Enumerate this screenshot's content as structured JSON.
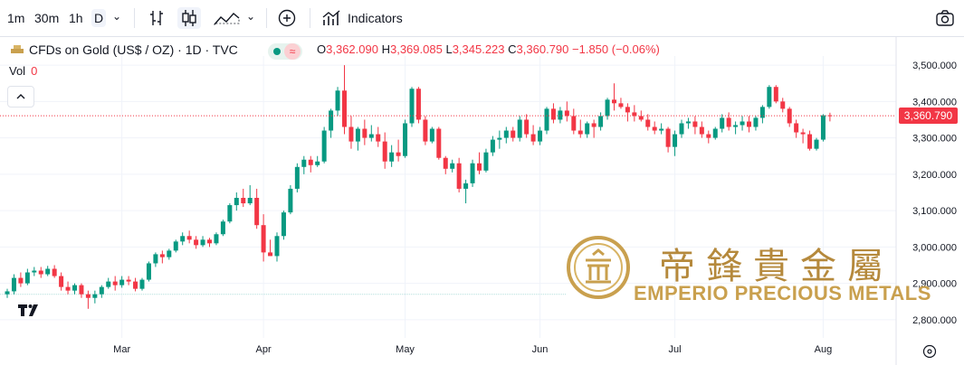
{
  "toolbar": {
    "intervals": [
      "1m",
      "30m",
      "1h",
      "D"
    ],
    "indicators_label": "Indicators",
    "icons": [
      "chevron-down-icon",
      "bar-style-icon",
      "candle-style-icon",
      "area-style-icon",
      "chevron-down-icon",
      "add-compare-icon",
      "indicators-icon",
      "camera-icon"
    ]
  },
  "legend": {
    "symbol": "CFDs on Gold (US$ / OZ) · 1D · TVC",
    "o_label": "O",
    "o_value": "3,362.090",
    "h_label": "H",
    "h_value": "3,369.085",
    "l_label": "L",
    "l_value": "3,345.223",
    "c_label": "C",
    "c_value": "3,360.790",
    "change": "−1.850 (−0.06%)",
    "vol_label": "Vol",
    "vol_value": "0"
  },
  "colors": {
    "up": "#089981",
    "down": "#f23645",
    "grid": "#f0f3fa",
    "gold": "#c9a04e"
  },
  "watermark": {
    "text": "EMPERIO PRECIOUS METALS",
    "chinese": "帝鋒貴金屬"
  },
  "chart_data": {
    "type": "candlestick",
    "ylim": [
      2750,
      3525
    ],
    "y_ticks": [
      "3,500.000",
      "3,400.000",
      "3,300.000",
      "3,200.000",
      "3,100.000",
      "3,000.000",
      "2,900.000",
      "2,800.000"
    ],
    "y_tick_values": [
      3500,
      3400,
      3300,
      3200,
      3100,
      3000,
      2900,
      2800
    ],
    "x_ticks": [
      {
        "label": "Mar",
        "index": 17
      },
      {
        "label": "Apr",
        "index": 38
      },
      {
        "label": "May",
        "index": 59
      },
      {
        "label": "Jun",
        "index": 79
      },
      {
        "label": "Jul",
        "index": 99
      },
      {
        "label": "Aug",
        "index": 121
      }
    ],
    "last_price": "3,360.790",
    "last_value": 3360.79,
    "candles": [
      [
        2870,
        2885,
        2860,
        2878
      ],
      [
        2878,
        2925,
        2870,
        2915
      ],
      [
        2915,
        2930,
        2890,
        2900
      ],
      [
        2900,
        2940,
        2895,
        2930
      ],
      [
        2930,
        2945,
        2920,
        2935
      ],
      [
        2935,
        2945,
        2915,
        2925
      ],
      [
        2925,
        2948,
        2920,
        2940
      ],
      [
        2940,
        2950,
        2915,
        2920
      ],
      [
        2920,
        2930,
        2880,
        2890
      ],
      [
        2890,
        2905,
        2870,
        2880
      ],
      [
        2880,
        2900,
        2870,
        2895
      ],
      [
        2895,
        2900,
        2860,
        2870
      ],
      [
        2870,
        2880,
        2830,
        2860
      ],
      [
        2860,
        2880,
        2845,
        2870
      ],
      [
        2870,
        2895,
        2860,
        2890
      ],
      [
        2890,
        2915,
        2885,
        2905
      ],
      [
        2905,
        2920,
        2880,
        2895
      ],
      [
        2895,
        2920,
        2888,
        2910
      ],
      [
        2910,
        2920,
        2895,
        2905
      ],
      [
        2905,
        2915,
        2878,
        2885
      ],
      [
        2885,
        2915,
        2880,
        2910
      ],
      [
        2910,
        2960,
        2905,
        2955
      ],
      [
        2955,
        2985,
        2945,
        2980
      ],
      [
        2980,
        2990,
        2955,
        2972
      ],
      [
        2972,
        2995,
        2965,
        2990
      ],
      [
        2990,
        3020,
        2985,
        3015
      ],
      [
        3015,
        3040,
        3005,
        3030
      ],
      [
        3030,
        3045,
        3010,
        3020
      ],
      [
        3020,
        3030,
        2995,
        3005
      ],
      [
        3005,
        3030,
        3000,
        3020
      ],
      [
        3020,
        3025,
        3000,
        3010
      ],
      [
        3010,
        3040,
        3005,
        3035
      ],
      [
        3035,
        3075,
        3030,
        3070
      ],
      [
        3070,
        3120,
        3065,
        3115
      ],
      [
        3115,
        3150,
        3100,
        3135
      ],
      [
        3135,
        3160,
        3110,
        3120
      ],
      [
        3120,
        3170,
        3115,
        3135
      ],
      [
        3135,
        3160,
        3050,
        3060
      ],
      [
        3060,
        3090,
        2960,
        2985
      ],
      [
        2985,
        3020,
        2975,
        2975
      ],
      [
        2975,
        3040,
        2960,
        3030
      ],
      [
        3030,
        3100,
        3020,
        3095
      ],
      [
        3095,
        3170,
        3090,
        3160
      ],
      [
        3160,
        3230,
        3150,
        3220
      ],
      [
        3220,
        3250,
        3200,
        3240
      ],
      [
        3240,
        3250,
        3205,
        3225
      ],
      [
        3225,
        3250,
        3220,
        3235
      ],
      [
        3235,
        3330,
        3230,
        3320
      ],
      [
        3320,
        3380,
        3300,
        3375
      ],
      [
        3375,
        3440,
        3360,
        3430
      ],
      [
        3430,
        3500,
        3310,
        3330
      ],
      [
        3330,
        3360,
        3270,
        3290
      ],
      [
        3290,
        3330,
        3265,
        3325
      ],
      [
        3325,
        3350,
        3280,
        3300
      ],
      [
        3300,
        3335,
        3290,
        3310
      ],
      [
        3310,
        3330,
        3275,
        3290
      ],
      [
        3290,
        3315,
        3215,
        3235
      ],
      [
        3235,
        3280,
        3220,
        3260
      ],
      [
        3260,
        3295,
        3235,
        3250
      ],
      [
        3250,
        3350,
        3245,
        3340
      ],
      [
        3340,
        3440,
        3330,
        3435
      ],
      [
        3435,
        3440,
        3340,
        3350
      ],
      [
        3350,
        3360,
        3280,
        3290
      ],
      [
        3290,
        3330,
        3285,
        3325
      ],
      [
        3325,
        3330,
        3240,
        3245
      ],
      [
        3245,
        3250,
        3200,
        3215
      ],
      [
        3215,
        3240,
        3205,
        3230
      ],
      [
        3230,
        3245,
        3150,
        3160
      ],
      [
        3160,
        3185,
        3120,
        3175
      ],
      [
        3175,
        3240,
        3165,
        3230
      ],
      [
        3230,
        3260,
        3200,
        3210
      ],
      [
        3210,
        3270,
        3205,
        3260
      ],
      [
        3260,
        3305,
        3250,
        3295
      ],
      [
        3295,
        3320,
        3270,
        3300
      ],
      [
        3300,
        3330,
        3285,
        3320
      ],
      [
        3320,
        3330,
        3290,
        3300
      ],
      [
        3300,
        3360,
        3290,
        3350
      ],
      [
        3350,
        3365,
        3300,
        3310
      ],
      [
        3310,
        3335,
        3280,
        3290
      ],
      [
        3290,
        3330,
        3280,
        3320
      ],
      [
        3320,
        3385,
        3310,
        3380
      ],
      [
        3380,
        3395,
        3340,
        3350
      ],
      [
        3350,
        3385,
        3340,
        3375
      ],
      [
        3375,
        3400,
        3345,
        3360
      ],
      [
        3360,
        3380,
        3310,
        3320
      ],
      [
        3320,
        3350,
        3300,
        3310
      ],
      [
        3310,
        3345,
        3300,
        3340
      ],
      [
        3340,
        3350,
        3300,
        3330
      ],
      [
        3330,
        3370,
        3320,
        3360
      ],
      [
        3360,
        3410,
        3350,
        3405
      ],
      [
        3405,
        3450,
        3375,
        3395
      ],
      [
        3395,
        3410,
        3380,
        3385
      ],
      [
        3385,
        3395,
        3345,
        3370
      ],
      [
        3370,
        3390,
        3345,
        3360
      ],
      [
        3360,
        3375,
        3345,
        3350
      ],
      [
        3350,
        3365,
        3320,
        3330
      ],
      [
        3330,
        3345,
        3310,
        3320
      ],
      [
        3320,
        3340,
        3310,
        3325
      ],
      [
        3325,
        3330,
        3260,
        3275
      ],
      [
        3275,
        3320,
        3250,
        3310
      ],
      [
        3310,
        3350,
        3300,
        3340
      ],
      [
        3340,
        3355,
        3325,
        3345
      ],
      [
        3345,
        3360,
        3310,
        3330
      ],
      [
        3330,
        3345,
        3300,
        3310
      ],
      [
        3310,
        3320,
        3285,
        3300
      ],
      [
        3300,
        3330,
        3295,
        3325
      ],
      [
        3325,
        3365,
        3315,
        3355
      ],
      [
        3355,
        3370,
        3320,
        3330
      ],
      [
        3330,
        3345,
        3310,
        3335
      ],
      [
        3335,
        3360,
        3320,
        3345
      ],
      [
        3345,
        3360,
        3315,
        3330
      ],
      [
        3330,
        3360,
        3320,
        3355
      ],
      [
        3355,
        3390,
        3340,
        3385
      ],
      [
        3385,
        3445,
        3380,
        3440
      ],
      [
        3440,
        3445,
        3395,
        3400
      ],
      [
        3400,
        3410,
        3370,
        3380
      ],
      [
        3380,
        3385,
        3330,
        3340
      ],
      [
        3340,
        3350,
        3300,
        3315
      ],
      [
        3315,
        3325,
        3285,
        3310
      ],
      [
        3310,
        3320,
        3265,
        3270
      ],
      [
        3270,
        3300,
        3265,
        3295
      ],
      [
        3295,
        3365,
        3290,
        3362
      ],
      [
        3362.09,
        3369.085,
        3345.223,
        3360.79
      ]
    ]
  }
}
